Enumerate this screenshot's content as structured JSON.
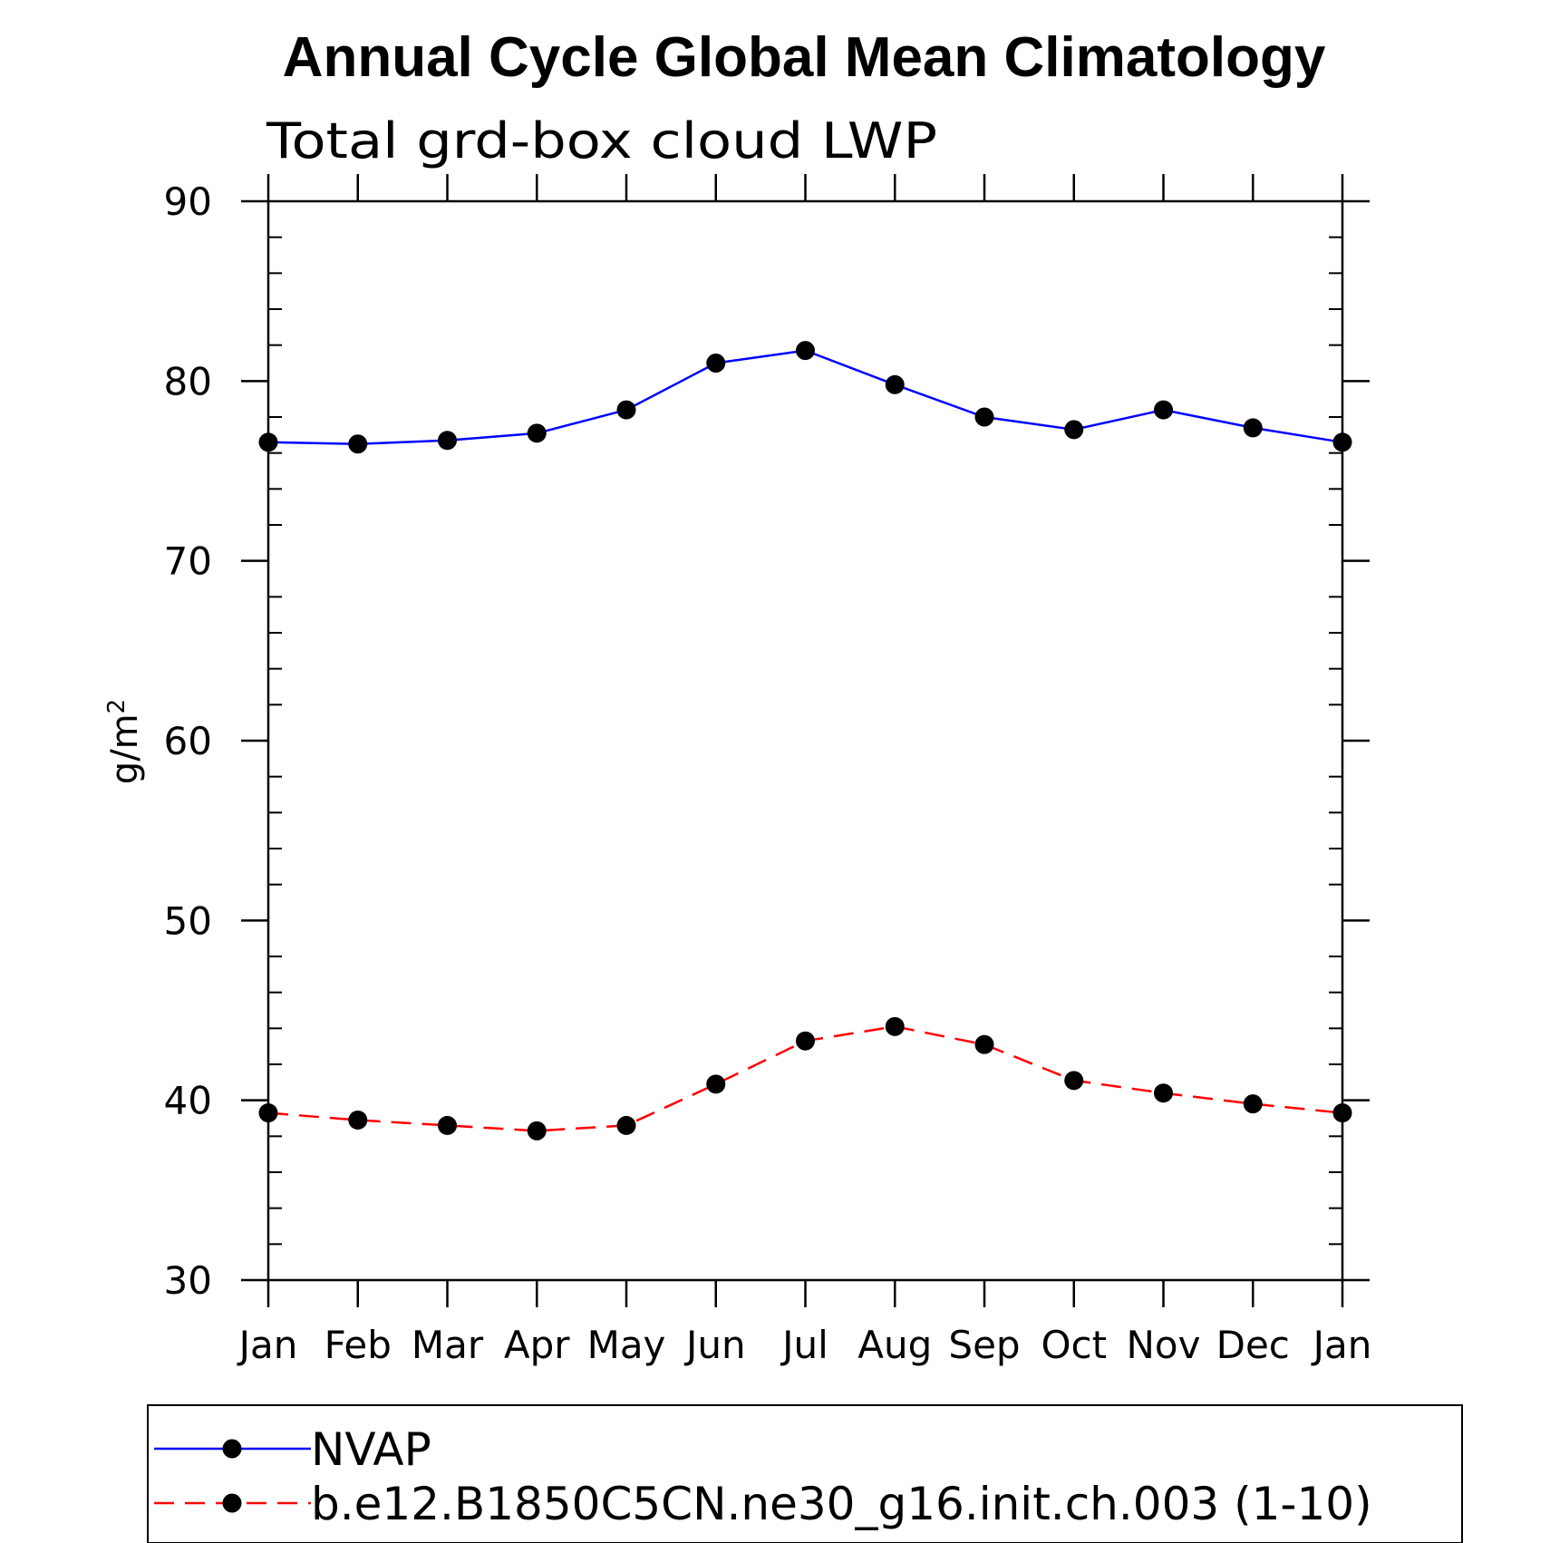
{
  "chart_data": {
    "type": "line",
    "title": "Annual Cycle Global Mean Climatology",
    "subtitle": "Total grd-box cloud LWP",
    "xlabel": "",
    "ylabel": "g/m",
    "ylabel_superscript": "2",
    "ylim": [
      30,
      90
    ],
    "yticks": [
      30,
      40,
      50,
      60,
      70,
      80,
      90
    ],
    "categories": [
      "Jan",
      "Feb",
      "Mar",
      "Apr",
      "May",
      "Jun",
      "Jul",
      "Aug",
      "Sep",
      "Oct",
      "Nov",
      "Dec",
      "Jan"
    ],
    "series": [
      {
        "name": "NVAP",
        "color": "#0000ff",
        "dash": "solid",
        "marker": "filled-circle",
        "values": [
          76.6,
          76.5,
          76.7,
          77.1,
          78.4,
          81.0,
          81.7,
          79.8,
          78.0,
          77.3,
          78.4,
          77.4,
          76.6
        ]
      },
      {
        "name": "b.e12.B1850C5CN.ne30_g16.init.ch.003 (1-10)",
        "color": "#ff0000",
        "dash": "dashed",
        "marker": "filled-circle",
        "values": [
          39.3,
          38.9,
          38.6,
          38.3,
          38.6,
          40.9,
          43.3,
          44.1,
          43.1,
          41.1,
          40.4,
          39.8,
          39.3
        ]
      }
    ],
    "legend_position": "bottom"
  }
}
